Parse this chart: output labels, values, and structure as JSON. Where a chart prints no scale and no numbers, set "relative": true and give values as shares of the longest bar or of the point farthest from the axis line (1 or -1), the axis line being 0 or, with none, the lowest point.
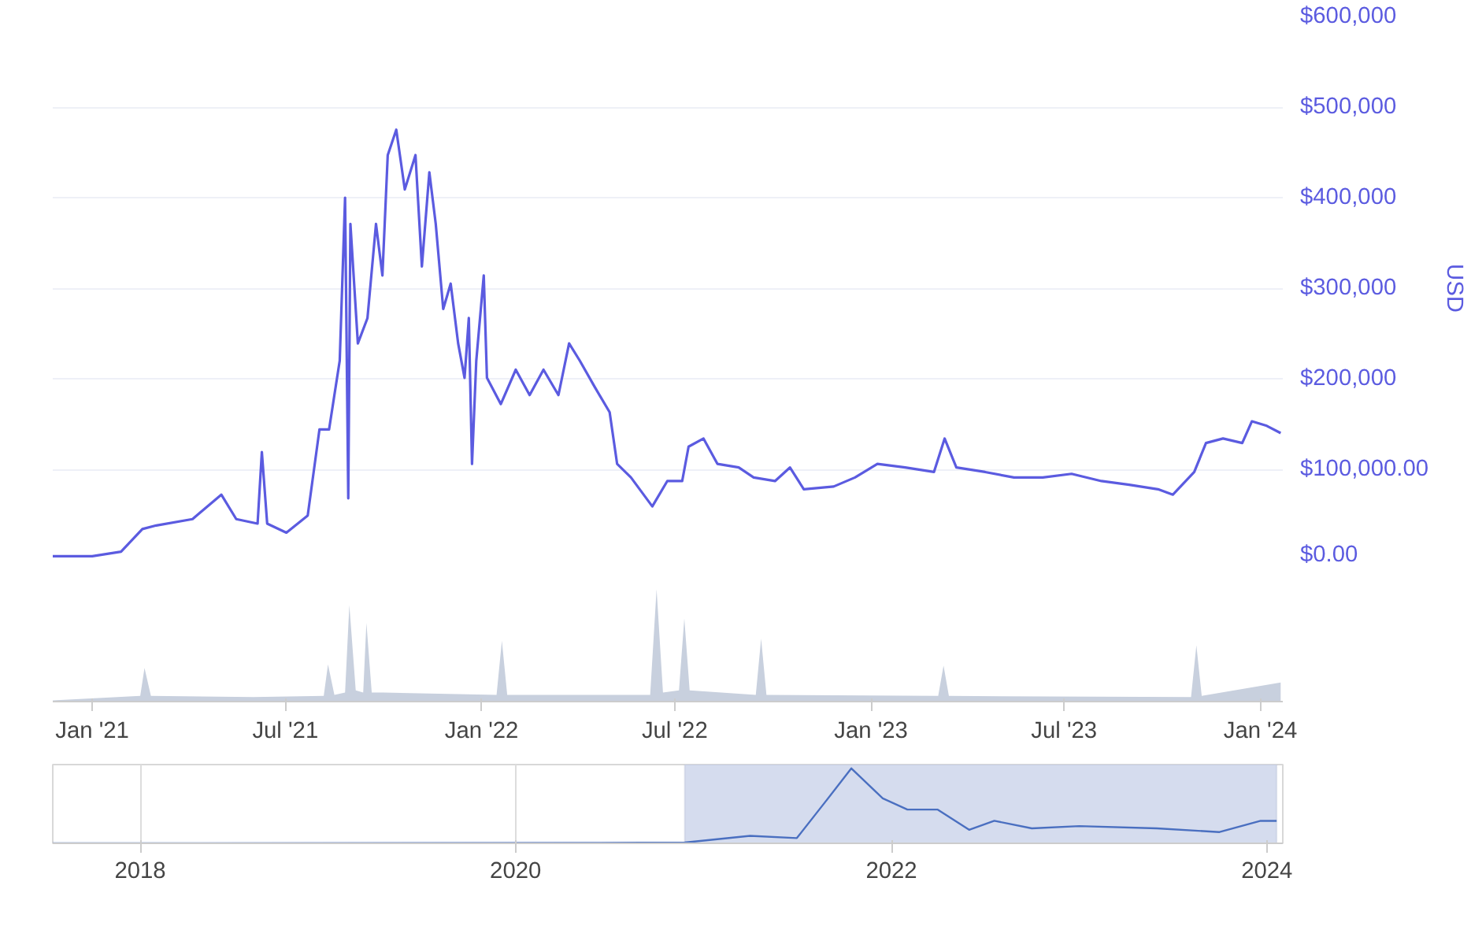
{
  "chart_data": [
    {
      "type": "line",
      "ylabel": "USD",
      "grid": "y",
      "tick_labels": "y",
      "xlim": [
        "2020-11-25",
        "2024-01-22"
      ],
      "ylim": [
        0,
        600000
      ],
      "yticks": [
        {
          "value": 0,
          "label": "$0.00"
        },
        {
          "value": 100000,
          "label": "$100,000.00"
        },
        {
          "value": 200000,
          "label": "$200,000"
        },
        {
          "value": 300000,
          "label": "$300,000"
        },
        {
          "value": 400000,
          "label": "$400,000"
        },
        {
          "value": 500000,
          "label": "$500,000"
        },
        {
          "value": 600000,
          "label": "$600,000"
        }
      ],
      "x": [
        "2020-11-25",
        "2021-01-01",
        "2021-01-28",
        "2021-02-17",
        "2021-03-02",
        "2021-04-05",
        "2021-05-02",
        "2021-05-16",
        "2021-06-05",
        "2021-06-09",
        "2021-06-14",
        "2021-07-02",
        "2021-07-22",
        "2021-08-02",
        "2021-08-11",
        "2021-08-21",
        "2021-08-26",
        "2021-08-29",
        "2021-08-31",
        "2021-09-07",
        "2021-09-16",
        "2021-09-24",
        "2021-09-30",
        "2021-10-05",
        "2021-10-13",
        "2021-10-21",
        "2021-10-31",
        "2021-11-06",
        "2021-11-13",
        "2021-11-19",
        "2021-11-26",
        "2021-12-03",
        "2021-12-10",
        "2021-12-16",
        "2021-12-20",
        "2021-12-23",
        "2021-12-27",
        "2022-01-03",
        "2022-01-06",
        "2022-01-19",
        "2022-02-02",
        "2022-02-15",
        "2022-02-28",
        "2022-03-14",
        "2022-03-24",
        "2022-04-03",
        "2022-04-17",
        "2022-05-01",
        "2022-05-08",
        "2022-05-21",
        "2022-06-10",
        "2022-06-24",
        "2022-07-08",
        "2022-07-14",
        "2022-07-28",
        "2022-08-10",
        "2022-08-30",
        "2022-09-13",
        "2022-10-03",
        "2022-10-17",
        "2022-10-30",
        "2022-11-27",
        "2022-12-17",
        "2023-01-07",
        "2023-02-02",
        "2023-03-01",
        "2023-03-11",
        "2023-03-22",
        "2023-04-18",
        "2023-05-15",
        "2023-06-11",
        "2023-07-08",
        "2023-08-05",
        "2023-08-31",
        "2023-09-27",
        "2023-10-11",
        "2023-10-31",
        "2023-11-11",
        "2023-11-27",
        "2023-12-15",
        "2023-12-24",
        "2024-01-07",
        "2024-01-20"
      ],
      "series": [
        {
          "color": "#5b5be0",
          "values": [
            4000,
            4000,
            9000,
            34000,
            38000,
            45000,
            72000,
            45000,
            40000,
            119000,
            40000,
            30000,
            49000,
            144000,
            144000,
            220000,
            400000,
            68000,
            371000,
            239000,
            267000,
            371000,
            314000,
            447000,
            475000,
            409000,
            447000,
            324000,
            428000,
            371000,
            277000,
            305000,
            239000,
            201000,
            267000,
            106000,
            220000,
            314000,
            201000,
            172000,
            210000,
            182000,
            210000,
            182000,
            239000,
            220000,
            191000,
            163000,
            106000,
            91000,
            59000,
            87000,
            87000,
            125000,
            134000,
            106000,
            102000,
            91000,
            87000,
            102000,
            78000,
            81000,
            91000,
            106000,
            102000,
            97000,
            134000,
            102000,
            97000,
            91000,
            91000,
            95000,
            87000,
            83000,
            78000,
            72000,
            97000,
            129000,
            134000,
            129000,
            153000,
            148000,
            140000
          ]
        }
      ]
    },
    {
      "type": "area",
      "relative": true,
      "tick_labels": "x",
      "xlim": [
        "2020-11-25",
        "2024-01-22"
      ],
      "xticks": [
        {
          "value": "2021-01-01",
          "label": "Jan '21"
        },
        {
          "value": "2021-07-01",
          "label": "Jul '21"
        },
        {
          "value": "2022-01-01",
          "label": "Jan '22"
        },
        {
          "value": "2022-07-01",
          "label": "Jul '22"
        },
        {
          "value": "2023-01-01",
          "label": "Jan '23"
        },
        {
          "value": "2023-07-01",
          "label": "Jul '23"
        },
        {
          "value": "2024-01-01",
          "label": "Jan '24"
        }
      ],
      "x": [
        "2020-11-25",
        "2021-02-15",
        "2021-02-19",
        "2021-02-25",
        "2021-06-01",
        "2021-08-06",
        "2021-08-10",
        "2021-08-16",
        "2021-08-26",
        "2021-08-30",
        "2021-09-05",
        "2021-09-12",
        "2021-09-15",
        "2021-09-20",
        "2021-10-01",
        "2022-01-15",
        "2022-01-20",
        "2022-01-25",
        "2022-06-08",
        "2022-06-14",
        "2022-06-20",
        "2022-07-05",
        "2022-07-10",
        "2022-07-15",
        "2022-09-15",
        "2022-09-20",
        "2022-09-25",
        "2023-03-05",
        "2023-03-10",
        "2023-03-15",
        "2023-10-28",
        "2023-11-02",
        "2023-11-07",
        "2024-01-20"
      ],
      "series": [
        {
          "color": "#c8d0de",
          "values": [
            0.01,
            0.05,
            0.3,
            0.05,
            0.04,
            0.05,
            0.33,
            0.06,
            0.08,
            0.86,
            0.1,
            0.08,
            0.7,
            0.08,
            0.08,
            0.06,
            0.54,
            0.06,
            0.06,
            1.0,
            0.08,
            0.1,
            0.74,
            0.1,
            0.06,
            0.56,
            0.06,
            0.05,
            0.32,
            0.05,
            0.04,
            0.5,
            0.05,
            0.17
          ]
        }
      ]
    },
    {
      "type": "line",
      "relative": true,
      "tick_labels": "x",
      "grid": "x",
      "xlim": [
        "2017-07-15",
        "2024-02-01"
      ],
      "xticks": [
        {
          "value": "2018-01-01",
          "label": "2018"
        },
        {
          "value": "2020-01-01",
          "label": "2020"
        },
        {
          "value": "2022-01-01",
          "label": "2022"
        },
        {
          "value": "2024-01-01",
          "label": "2024"
        }
      ],
      "bands": [
        {
          "axis": "x",
          "from": "2020-11-25",
          "to": "2024-01-20",
          "color": "#d5dcee"
        }
      ],
      "x": [
        "2017-07-15",
        "2020-06-01",
        "2020-11-25",
        "2021-04-01",
        "2021-07-01",
        "2021-08-25",
        "2021-10-15",
        "2021-12-15",
        "2022-02-01",
        "2022-04-01",
        "2022-06-01",
        "2022-07-20",
        "2022-10-01",
        "2023-01-01",
        "2023-06-01",
        "2023-10-01",
        "2023-12-20",
        "2024-01-20"
      ],
      "series": [
        {
          "color": "#4a6fc0",
          "values": [
            0,
            0.005,
            0.01,
            0.1,
            0.07,
            0.55,
            1.0,
            0.6,
            0.45,
            0.45,
            0.18,
            0.3,
            0.2,
            0.23,
            0.2,
            0.15,
            0.3,
            0.3
          ]
        }
      ]
    }
  ]
}
